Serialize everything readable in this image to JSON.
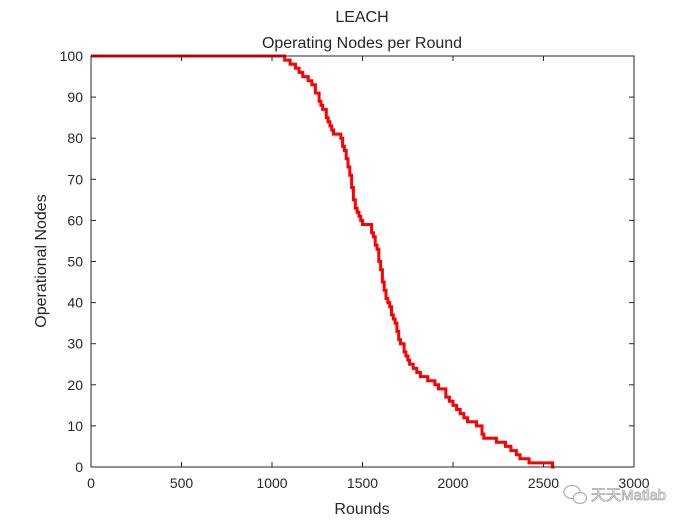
{
  "chart_data": {
    "type": "line",
    "title": "LEACH",
    "subtitle": "Operating Nodes per Round",
    "xlabel": "Rounds",
    "ylabel": "Operational Nodes",
    "xlim": [
      0,
      3000
    ],
    "ylim": [
      0,
      100
    ],
    "xticks": [
      0,
      500,
      1000,
      1500,
      2000,
      2500,
      3000
    ],
    "yticks": [
      0,
      10,
      20,
      30,
      40,
      50,
      60,
      70,
      80,
      90,
      100
    ],
    "grid": false,
    "series": [
      {
        "color": "#ff0000",
        "x": [
          0,
          1050,
          1070,
          1100,
          1130,
          1150,
          1170,
          1200,
          1220,
          1240,
          1260,
          1270,
          1280,
          1300,
          1310,
          1320,
          1330,
          1340,
          1350,
          1380,
          1390,
          1400,
          1410,
          1420,
          1430,
          1440,
          1450,
          1460,
          1470,
          1480,
          1490,
          1500,
          1520,
          1550,
          1560,
          1570,
          1580,
          1590,
          1600,
          1610,
          1620,
          1630,
          1640,
          1650,
          1660,
          1670,
          1680,
          1690,
          1700,
          1710,
          1720,
          1730,
          1740,
          1750,
          1760,
          1770,
          1780,
          1800,
          1820,
          1840,
          1860,
          1880,
          1900,
          1920,
          1960,
          1980,
          2000,
          2020,
          2040,
          2060,
          2080,
          2100,
          2130,
          2160,
          2170,
          2180,
          2200,
          2240,
          2260,
          2290,
          2310,
          2320,
          2350,
          2370,
          2400,
          2420,
          2450,
          2500,
          2550,
          2560
        ],
        "y": [
          100,
          100,
          99,
          98,
          97,
          96,
          95,
          94,
          93,
          91,
          89,
          88,
          87,
          85,
          84,
          83,
          82,
          81,
          81,
          80,
          78,
          77,
          75,
          73,
          71,
          68,
          65,
          63,
          62,
          61,
          60,
          59,
          59,
          57,
          56,
          54,
          53,
          50,
          48,
          45,
          43,
          41,
          40,
          39,
          37,
          36,
          35,
          33,
          31,
          30,
          30,
          28,
          27,
          26,
          25,
          25,
          24,
          23,
          22,
          22,
          21,
          21,
          20,
          19,
          17,
          16,
          15,
          14,
          13,
          12,
          11,
          11,
          10,
          8,
          7,
          7,
          7,
          6,
          6,
          5,
          5,
          4,
          3,
          2,
          2,
          1,
          1,
          1,
          0,
          0
        ]
      }
    ]
  },
  "watermark": {
    "icon": "wechat-icon",
    "text": "天天Matlab"
  }
}
